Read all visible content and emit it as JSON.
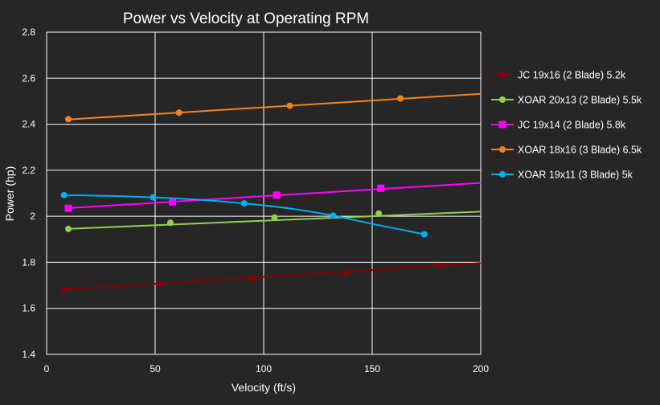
{
  "chart_data": {
    "type": "line",
    "title": "Power vs Velocity at Operating RPM",
    "xlabel": "Velocity (ft/s)",
    "ylabel": "Power (hp)",
    "xlim": [
      0,
      200
    ],
    "ylim": [
      1.4,
      2.8
    ],
    "xticks": [
      0,
      50,
      100,
      150,
      200
    ],
    "yticks": [
      1.4,
      1.6,
      1.8,
      2,
      2.2,
      2.4,
      2.6,
      2.8
    ],
    "ytick_labels": [
      "1.4",
      "1.6",
      "1.8",
      "2",
      "2.2",
      "2.4",
      "2.6",
      "2.8"
    ],
    "grid": true,
    "legend_position": "right",
    "series": [
      {
        "name": "JC 19x16 (2 Blade) 5.2k",
        "color": "#8b0000",
        "marker": "circle",
        "trendline": [
          [
            8,
            1.682
          ],
          [
            200,
            1.797
          ]
        ],
        "points": [
          [
            8,
            1.68
          ],
          [
            52,
            1.705
          ],
          [
            95,
            1.73
          ],
          [
            138,
            1.755
          ],
          [
            181,
            1.785
          ]
        ]
      },
      {
        "name": "XOAR 20x13 (2 Blade) 5.5k",
        "color": "#92d050",
        "marker": "circle",
        "trendline": [
          [
            9,
            1.945
          ],
          [
            200,
            2.02
          ]
        ],
        "points": [
          [
            10,
            1.945
          ],
          [
            57,
            1.972
          ],
          [
            105,
            1.995
          ],
          [
            153,
            2.012
          ]
        ]
      },
      {
        "name": "JC 19x14 (2 Blade) 5.8k",
        "color": "#ff00ff",
        "marker": "square",
        "trendline": [
          [
            9,
            2.035
          ],
          [
            200,
            2.145
          ]
        ],
        "points": [
          [
            10,
            2.035
          ],
          [
            58,
            2.062
          ],
          [
            106,
            2.092
          ],
          [
            154,
            2.122
          ]
        ]
      },
      {
        "name": "XOAR 18x16 (3 Blade) 6.5k",
        "color": "#f58220",
        "marker": "circle",
        "trendline": [
          [
            9,
            2.42
          ],
          [
            200,
            2.532
          ]
        ],
        "points": [
          [
            10,
            2.422
          ],
          [
            61,
            2.45
          ],
          [
            112,
            2.48
          ],
          [
            163,
            2.512
          ]
        ]
      },
      {
        "name": "XOAR 19x11 (3 Blade) 5k",
        "color": "#00b0f0",
        "marker": "circle",
        "curve": [
          [
            8,
            2.092
          ],
          [
            30,
            2.088
          ],
          [
            49,
            2.082
          ],
          [
            70,
            2.072
          ],
          [
            91,
            2.056
          ],
          [
            112,
            2.034
          ],
          [
            132,
            2.003
          ],
          [
            150,
            1.967
          ],
          [
            174,
            1.922
          ]
        ],
        "points": [
          [
            8,
            2.092
          ],
          [
            49,
            2.082
          ],
          [
            91,
            2.056
          ],
          [
            132,
            2.003
          ],
          [
            174,
            1.922
          ]
        ]
      }
    ]
  }
}
